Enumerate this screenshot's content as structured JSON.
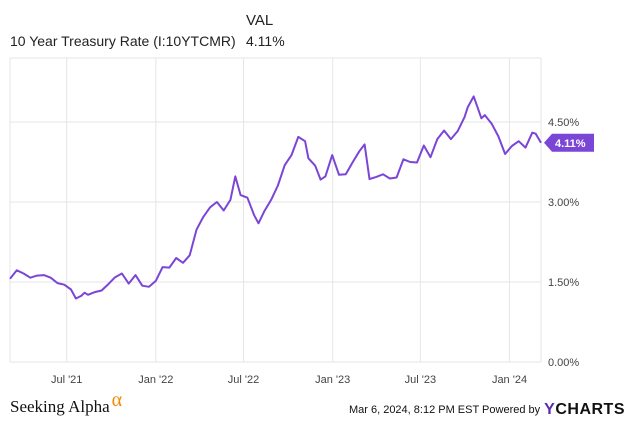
{
  "legend": {
    "series_header": "",
    "value_header": "VAL",
    "series_name": "10 Year Treasury Rate (I:10YTCMR)",
    "series_value": "4.11%"
  },
  "footer": {
    "brand": "Seeking Alpha",
    "brand_mark": "α",
    "timestamp": "Mar 6, 2024, 8:12 PM EST Powered by",
    "provider_y": "Y",
    "provider_rest": "CHARTS"
  },
  "colors": {
    "line": "#7b45d6",
    "badge": "#7b45d6",
    "grid": "#e6e6e6",
    "brand_alpha": "#f08a00"
  },
  "chart_data": {
    "type": "line",
    "title": "",
    "xlabel": "",
    "ylabel": "",
    "x_ticks": [
      "Jul '21",
      "Jan '22",
      "Jul '22",
      "Jan '23",
      "Jul '23",
      "Jan '24"
    ],
    "y_ticks": [
      "0.00%",
      "1.50%",
      "3.00%",
      "4.50%"
    ],
    "ylim": [
      0,
      5.7
    ],
    "grid": true,
    "last_value_label": "4.11%",
    "series": [
      {
        "name": "10 Year Treasury Rate (I:10YTCMR)",
        "points": [
          [
            "2021-03-06",
            1.56
          ],
          [
            "2021-03-20",
            1.72
          ],
          [
            "2021-04-03",
            1.66
          ],
          [
            "2021-04-17",
            1.58
          ],
          [
            "2021-05-01",
            1.62
          ],
          [
            "2021-05-15",
            1.63
          ],
          [
            "2021-05-29",
            1.58
          ],
          [
            "2021-06-12",
            1.48
          ],
          [
            "2021-06-26",
            1.45
          ],
          [
            "2021-07-10",
            1.36
          ],
          [
            "2021-07-20",
            1.19
          ],
          [
            "2021-07-31",
            1.24
          ],
          [
            "2021-08-07",
            1.3
          ],
          [
            "2021-08-14",
            1.26
          ],
          [
            "2021-08-28",
            1.31
          ],
          [
            "2021-09-11",
            1.34
          ],
          [
            "2021-09-25",
            1.46
          ],
          [
            "2021-10-09",
            1.59
          ],
          [
            "2021-10-23",
            1.66
          ],
          [
            "2021-11-06",
            1.47
          ],
          [
            "2021-11-20",
            1.63
          ],
          [
            "2021-12-04",
            1.43
          ],
          [
            "2021-12-18",
            1.41
          ],
          [
            "2022-01-01",
            1.52
          ],
          [
            "2022-01-15",
            1.78
          ],
          [
            "2022-01-29",
            1.77
          ],
          [
            "2022-02-12",
            1.95
          ],
          [
            "2022-02-26",
            1.86
          ],
          [
            "2022-03-12",
            2.0
          ],
          [
            "2022-03-26",
            2.48
          ],
          [
            "2022-04-09",
            2.72
          ],
          [
            "2022-04-23",
            2.9
          ],
          [
            "2022-05-07",
            3.0
          ],
          [
            "2022-05-21",
            2.84
          ],
          [
            "2022-06-04",
            3.04
          ],
          [
            "2022-06-14",
            3.48
          ],
          [
            "2022-06-25",
            3.13
          ],
          [
            "2022-07-09",
            3.08
          ],
          [
            "2022-07-23",
            2.75
          ],
          [
            "2022-08-01",
            2.6
          ],
          [
            "2022-08-13",
            2.83
          ],
          [
            "2022-08-27",
            3.04
          ],
          [
            "2022-09-10",
            3.31
          ],
          [
            "2022-09-24",
            3.69
          ],
          [
            "2022-10-08",
            3.88
          ],
          [
            "2022-10-22",
            4.22
          ],
          [
            "2022-11-05",
            4.14
          ],
          [
            "2022-11-12",
            3.82
          ],
          [
            "2022-11-26",
            3.68
          ],
          [
            "2022-12-07",
            3.42
          ],
          [
            "2022-12-17",
            3.48
          ],
          [
            "2022-12-31",
            3.88
          ],
          [
            "2023-01-14",
            3.51
          ],
          [
            "2023-01-28",
            3.52
          ],
          [
            "2023-02-11",
            3.74
          ],
          [
            "2023-02-25",
            3.95
          ],
          [
            "2023-03-08",
            4.08
          ],
          [
            "2023-03-18",
            3.43
          ],
          [
            "2023-04-01",
            3.47
          ],
          [
            "2023-04-15",
            3.52
          ],
          [
            "2023-04-29",
            3.44
          ],
          [
            "2023-05-13",
            3.46
          ],
          [
            "2023-05-27",
            3.8
          ],
          [
            "2023-06-10",
            3.75
          ],
          [
            "2023-06-24",
            3.74
          ],
          [
            "2023-07-08",
            4.06
          ],
          [
            "2023-07-22",
            3.84
          ],
          [
            "2023-08-05",
            4.18
          ],
          [
            "2023-08-19",
            4.34
          ],
          [
            "2023-09-02",
            4.18
          ],
          [
            "2023-09-16",
            4.33
          ],
          [
            "2023-09-30",
            4.59
          ],
          [
            "2023-10-07",
            4.78
          ],
          [
            "2023-10-19",
            4.98
          ],
          [
            "2023-11-04",
            4.57
          ],
          [
            "2023-11-11",
            4.63
          ],
          [
            "2023-11-25",
            4.47
          ],
          [
            "2023-12-09",
            4.23
          ],
          [
            "2023-12-23",
            3.9
          ],
          [
            "2024-01-06",
            4.05
          ],
          [
            "2024-01-20",
            4.14
          ],
          [
            "2024-02-03",
            4.02
          ],
          [
            "2024-02-17",
            4.3
          ],
          [
            "2024-02-24",
            4.28
          ],
          [
            "2024-03-06",
            4.11
          ]
        ]
      }
    ]
  }
}
